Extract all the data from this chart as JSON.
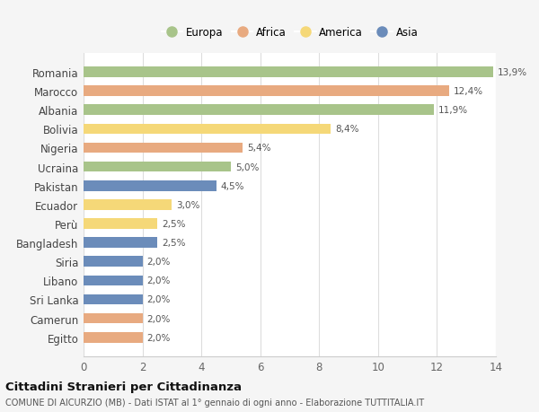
{
  "countries": [
    "Romania",
    "Marocco",
    "Albania",
    "Bolivia",
    "Nigeria",
    "Ucraina",
    "Pakistan",
    "Ecuador",
    "Perù",
    "Bangladesh",
    "Siria",
    "Libano",
    "Sri Lanka",
    "Camerun",
    "Egitto"
  ],
  "values": [
    13.9,
    12.4,
    11.9,
    8.4,
    5.4,
    5.0,
    4.5,
    3.0,
    2.5,
    2.5,
    2.0,
    2.0,
    2.0,
    2.0,
    2.0
  ],
  "labels": [
    "13,9%",
    "12,4%",
    "11,9%",
    "8,4%",
    "5,4%",
    "5,0%",
    "4,5%",
    "3,0%",
    "2,5%",
    "2,5%",
    "2,0%",
    "2,0%",
    "2,0%",
    "2,0%",
    "2,0%"
  ],
  "continents": [
    "Europa",
    "Africa",
    "Europa",
    "America",
    "Africa",
    "Europa",
    "Asia",
    "America",
    "America",
    "Asia",
    "Asia",
    "Asia",
    "Asia",
    "Africa",
    "Africa"
  ],
  "colors": {
    "Europa": "#a8c48a",
    "Africa": "#e8aa80",
    "America": "#f5d878",
    "Asia": "#6b8cba"
  },
  "legend_order": [
    "Europa",
    "Africa",
    "America",
    "Asia"
  ],
  "xlim": [
    0,
    14
  ],
  "xticks": [
    0,
    2,
    4,
    6,
    8,
    10,
    12,
    14
  ],
  "title": "Cittadini Stranieri per Cittadinanza",
  "subtitle": "COMUNE DI AICURZIO (MB) - Dati ISTAT al 1° gennaio di ogni anno - Elaborazione TUTTITALIA.IT",
  "bg_color": "#f5f5f5",
  "plot_bg_color": "#ffffff"
}
